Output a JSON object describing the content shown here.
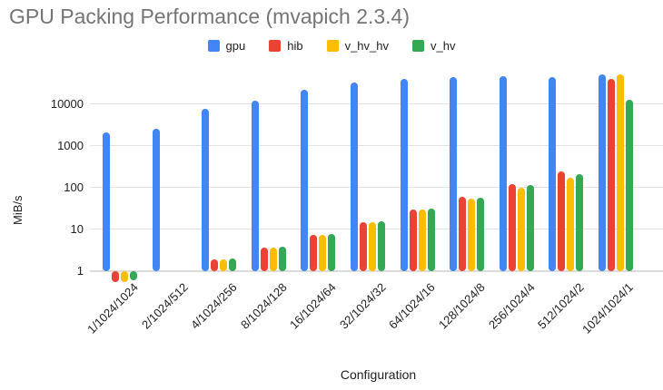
{
  "title": "GPU Packing Performance (mvapich 2.3.4)",
  "colors": {
    "title_text": "#757575",
    "axis_text": "#222222",
    "gridline": "#e3e3e3",
    "background": "#ffffff"
  },
  "chart_data": {
    "type": "bar",
    "title": "GPU Packing Performance (mvapich 2.3.4)",
    "xlabel": "Configuration",
    "ylabel": "MiB/s",
    "y_scale": "log",
    "y_ticks": [
      1,
      10,
      100,
      1000,
      10000
    ],
    "ylim": [
      1,
      63000
    ],
    "grid": true,
    "legend_position": "top",
    "categories": [
      "1/1024/1024",
      "2/1024/512",
      "4/1024/256",
      "8/1024/128",
      "16/1024/64",
      "32/1024/32",
      "64/1024/16",
      "128/1024/8",
      "256/1024/4",
      "512/1024/2",
      "1024/1024/1"
    ],
    "series": [
      {
        "name": "gpu",
        "color": "#4285F4",
        "values": [
          2100,
          2600,
          7800,
          12000,
          22500,
          33000,
          40500,
          44500,
          47000,
          44500,
          52000
        ]
      },
      {
        "name": "hib",
        "color": "#EA4335",
        "values": [
          0.55,
          null,
          1.9,
          3.7,
          7.5,
          15,
          30,
          60,
          120,
          240,
          40000
        ]
      },
      {
        "name": "v_hv_hv",
        "color": "#FBBC04",
        "values": [
          0.55,
          null,
          1.9,
          3.7,
          7.5,
          15,
          30,
          55,
          100,
          170,
          51000
        ]
      },
      {
        "name": "v_hv",
        "color": "#34A853",
        "values": [
          0.6,
          null,
          2.0,
          3.8,
          7.8,
          15.5,
          31,
          58,
          118,
          215,
          12500
        ]
      }
    ]
  }
}
